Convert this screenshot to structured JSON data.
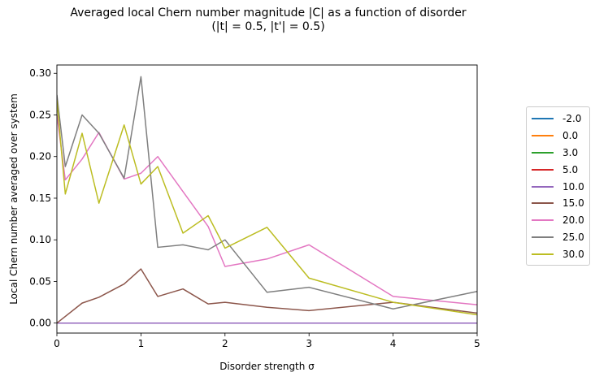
{
  "chart_data": {
    "type": "line",
    "title_line1": "Averaged local Chern number magnitude |C| as a function of disorder",
    "title_line2": "(|t| = 0.5, |t'| = 0.5)",
    "xlabel": "Disorder strength σ",
    "ylabel": "Local Chern number averaged over system",
    "xlim": [
      0,
      5
    ],
    "ylim": [
      -0.012,
      0.31
    ],
    "xticks": [
      "0",
      "1",
      "2",
      "3",
      "4",
      "5"
    ],
    "yticks": [
      "0.00",
      "0.05",
      "0.10",
      "0.15",
      "0.20",
      "0.25",
      "0.30"
    ],
    "grid": false,
    "legend_position": "outside-right",
    "series": [
      {
        "name": "-2.0",
        "color": "#1f77b4",
        "x": [
          0,
          5
        ],
        "y": [
          0,
          0
        ]
      },
      {
        "name": "0.0",
        "color": "#ff7f0e",
        "x": [
          0,
          5
        ],
        "y": [
          0,
          0
        ]
      },
      {
        "name": "3.0",
        "color": "#2ca02c",
        "x": [
          0,
          5
        ],
        "y": [
          0,
          0
        ]
      },
      {
        "name": "5.0",
        "color": "#d62728",
        "x": [
          0,
          5
        ],
        "y": [
          0,
          0
        ]
      },
      {
        "name": "10.0",
        "color": "#9467bd",
        "x": [
          0,
          5
        ],
        "y": [
          0,
          0
        ]
      },
      {
        "name": "15.0",
        "color": "#8c564b",
        "x": [
          0,
          0.3,
          0.5,
          0.8,
          1.0,
          1.2,
          1.5,
          1.8,
          2.0,
          2.5,
          3.0,
          4.0,
          5.0
        ],
        "y": [
          0,
          0.024,
          0.031,
          0.047,
          0.065,
          0.032,
          0.041,
          0.023,
          0.025,
          0.019,
          0.015,
          0.025,
          0.012
        ]
      },
      {
        "name": "20.0",
        "color": "#e377c2",
        "x": [
          0,
          0.1,
          0.3,
          0.5,
          0.8,
          1.0,
          1.2,
          1.5,
          1.8,
          2.0,
          2.5,
          3.0,
          4.0,
          5.0
        ],
        "y": [
          0.25,
          0.172,
          0.197,
          0.229,
          0.173,
          0.18,
          0.2,
          0.158,
          0.116,
          0.068,
          0.077,
          0.094,
          0.032,
          0.022
        ]
      },
      {
        "name": "25.0",
        "color": "#7f7f7f",
        "x": [
          0,
          0.1,
          0.3,
          0.5,
          0.8,
          1.0,
          1.2,
          1.5,
          1.8,
          2.0,
          2.5,
          3.0,
          4.0,
          5.0
        ],
        "y": [
          0.274,
          0.188,
          0.25,
          0.228,
          0.174,
          0.296,
          0.091,
          0.094,
          0.088,
          0.1,
          0.037,
          0.043,
          0.017,
          0.038
        ]
      },
      {
        "name": "30.0",
        "color": "#bcbd22",
        "x": [
          0,
          0.1,
          0.3,
          0.5,
          0.8,
          1.0,
          1.2,
          1.5,
          1.8,
          2.0,
          2.5,
          3.0,
          4.0,
          5.0
        ],
        "y": [
          0.268,
          0.155,
          0.228,
          0.144,
          0.238,
          0.167,
          0.188,
          0.108,
          0.129,
          0.09,
          0.115,
          0.054,
          0.025,
          0.01
        ]
      }
    ]
  }
}
